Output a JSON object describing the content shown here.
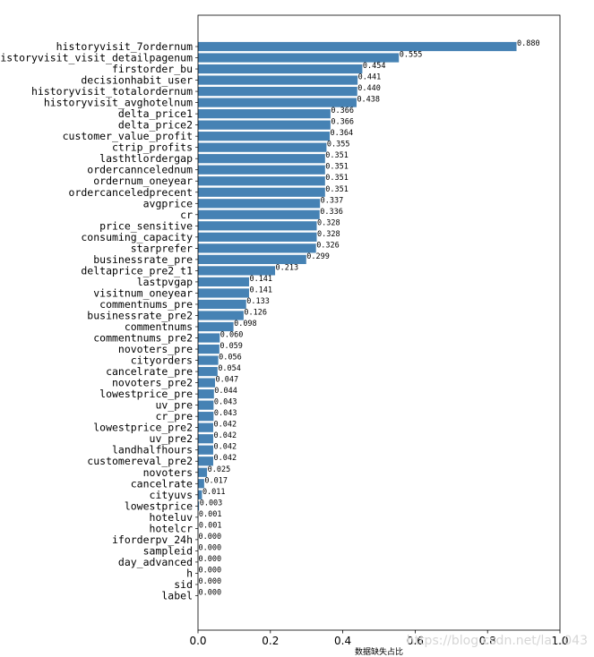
{
  "chart_data": {
    "type": "bar",
    "orientation": "horizontal",
    "xlabel": "数据缺失占比",
    "ylabel": "",
    "xlim": [
      0,
      1.0
    ],
    "xticks": [
      "0.0",
      "0.2",
      "0.4",
      "0.6",
      "0.8",
      "1.0"
    ],
    "bar_color": "#4682b4",
    "grid": false,
    "watermark": "https://blog.csdn.net/la...043",
    "categories": [
      "historyvisit_7ordernum",
      "historyvisit_visit_detailpagenum",
      "firstorder_bu",
      "decisionhabit_user",
      "historyvisit_totalordernum",
      "historyvisit_avghotelnum",
      "delta_price1",
      "delta_price2",
      "customer_value_profit",
      "ctrip_profits",
      "lasthtlordergap",
      "ordercanncelednum",
      "ordernum_oneyear",
      "ordercanceledprecent",
      "avgprice",
      "cr",
      "price_sensitive",
      "consuming_capacity",
      "starprefer",
      "businessrate_pre",
      "deltaprice_pre2_t1",
      "lastpvgap",
      "visitnum_oneyear",
      "commentnums_pre",
      "businessrate_pre2",
      "commentnums",
      "commentnums_pre2",
      "novoters_pre",
      "cityorders",
      "cancelrate_pre",
      "novoters_pre2",
      "lowestprice_pre",
      "uv_pre",
      "cr_pre",
      "lowestprice_pre2",
      "uv_pre2",
      "landhalfhours",
      "customereval_pre2",
      "novoters",
      "cancelrate",
      "cityuvs",
      "lowestprice",
      "hoteluv",
      "hotelcr",
      "iforderpv_24h",
      "sampleid",
      "day_advanced",
      "h",
      "sid",
      "label"
    ],
    "values": [
      0.88,
      0.555,
      0.454,
      0.441,
      0.44,
      0.438,
      0.366,
      0.366,
      0.364,
      0.355,
      0.351,
      0.351,
      0.351,
      0.351,
      0.337,
      0.336,
      0.328,
      0.328,
      0.326,
      0.299,
      0.213,
      0.141,
      0.141,
      0.133,
      0.126,
      0.098,
      0.06,
      0.059,
      0.056,
      0.054,
      0.047,
      0.044,
      0.043,
      0.043,
      0.042,
      0.042,
      0.042,
      0.042,
      0.025,
      0.017,
      0.011,
      0.003,
      0.001,
      0.001,
      0.0,
      0.0,
      0.0,
      0.0,
      0.0,
      0.0
    ],
    "value_labels": [
      "0.880",
      "0.555",
      "0.454",
      "0.441",
      "0.440",
      "0.438",
      "0.366",
      "0.366",
      "0.364",
      "0.355",
      "0.351",
      "0.351",
      "0.351",
      "0.351",
      "0.337",
      "0.336",
      "0.328",
      "0.328",
      "0.326",
      "0.299",
      "0.213",
      "0.141",
      "0.141",
      "0.133",
      "0.126",
      "0.098",
      "0.060",
      "0.059",
      "0.056",
      "0.054",
      "0.047",
      "0.044",
      "0.043",
      "0.043",
      "0.042",
      "0.042",
      "0.042",
      "0.042",
      "0.025",
      "0.017",
      "0.011",
      "0.003",
      "0.001",
      "0.001",
      "0.000",
      "0.000",
      "0.000",
      "0.000",
      "0.000",
      "0.000"
    ]
  }
}
